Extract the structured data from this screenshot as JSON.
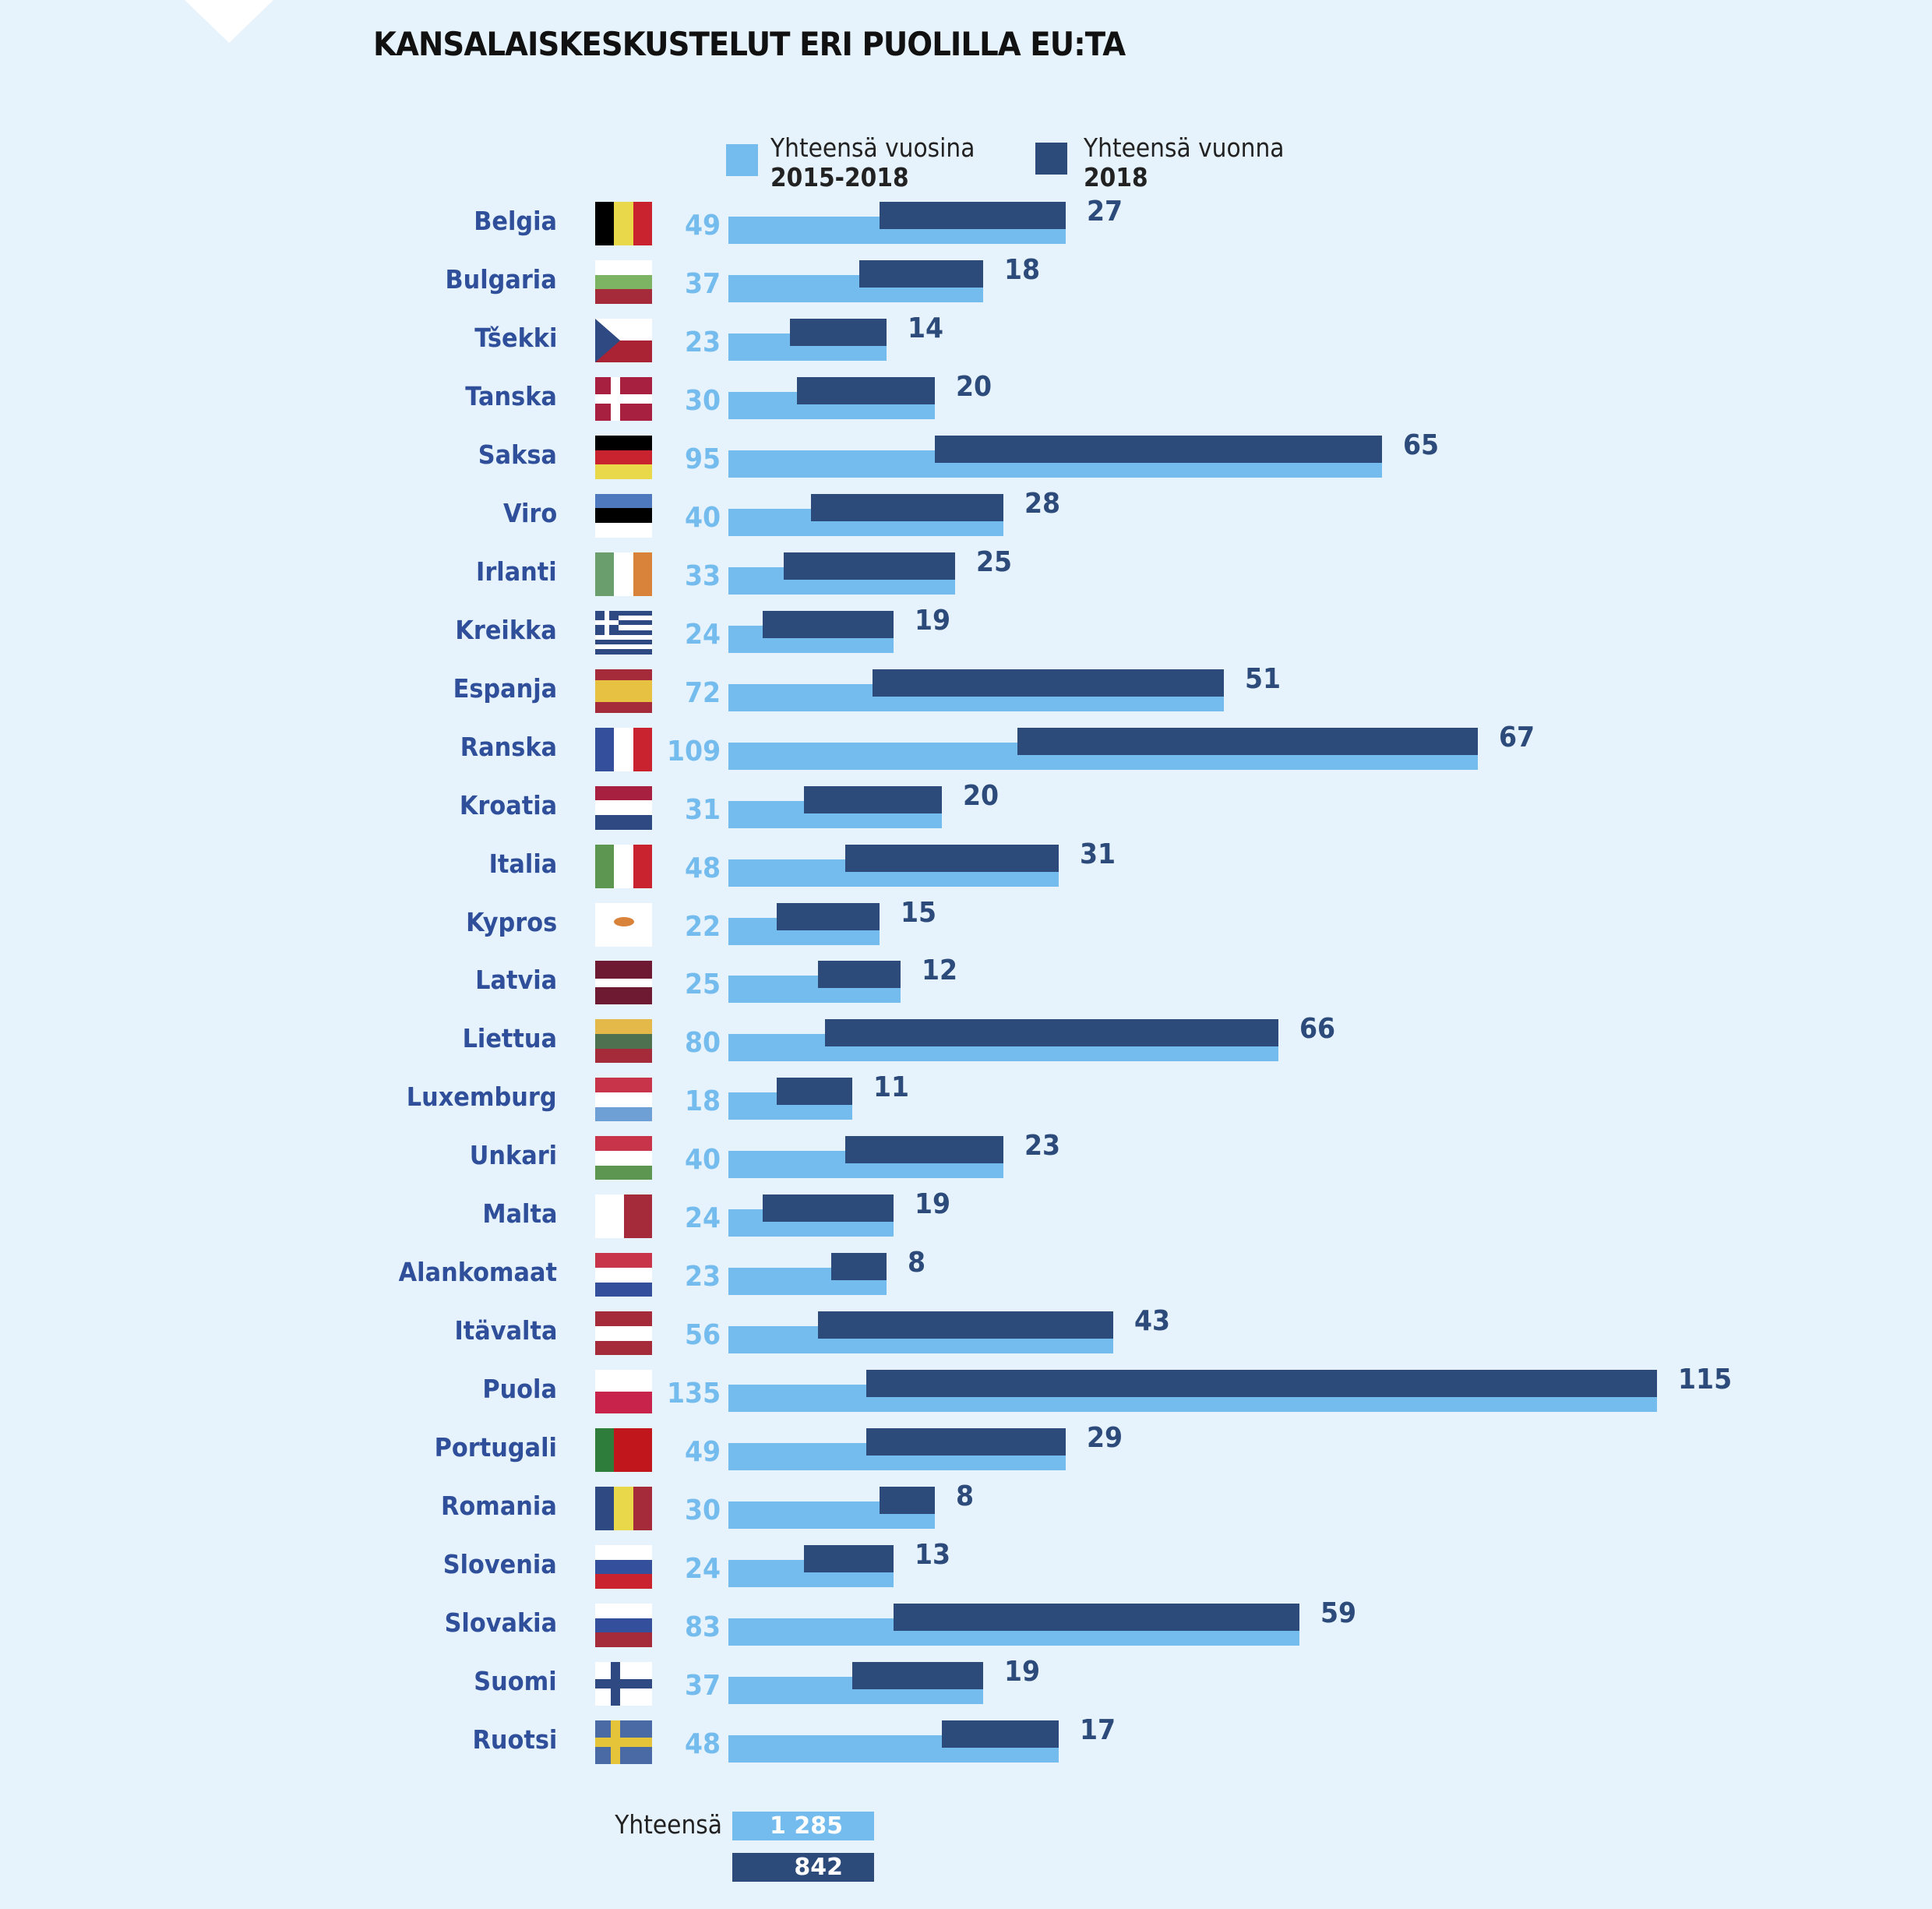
{
  "title": "KANSALAISKESKUSTELUT ERI PUOLILLA EU:TA",
  "colors": {
    "light": "#74bcee",
    "dark": "#2c4a7a",
    "label": "#2f4f9a",
    "background": "#e6f2fc"
  },
  "legend": [
    {
      "line1": "Yhteensä vuosina",
      "line2": "2015-2018",
      "color": "#74bcee"
    },
    {
      "line1": "Yhteensä vuonna",
      "line2": "2018",
      "color": "#2c4a7a"
    }
  ],
  "chart_data": {
    "type": "bar",
    "orientation": "horizontal",
    "categories": [
      "Belgia",
      "Bulgaria",
      "Tšekki",
      "Tanska",
      "Saksa",
      "Viro",
      "Irlanti",
      "Kreikka",
      "Espanja",
      "Ranska",
      "Kroatia",
      "Italia",
      "Kypros",
      "Latvia",
      "Liettua",
      "Luxemburg",
      "Unkari",
      "Malta",
      "Alankomaat",
      "Itävalta",
      "Puola",
      "Portugali",
      "Romania",
      "Slovenia",
      "Slovakia",
      "Suomi",
      "Ruotsi"
    ],
    "flags": [
      "flag-be",
      "flag-bg",
      "flag-cz",
      "flag-dk",
      "flag-de",
      "flag-ee",
      "flag-ie",
      "flag-gr",
      "flag-es",
      "flag-fr",
      "flag-hr",
      "flag-it",
      "flag-cy",
      "flag-lv",
      "flag-lt",
      "flag-lu",
      "flag-hu",
      "flag-mt",
      "flag-nl",
      "flag-at",
      "flag-pl",
      "flag-pt",
      "flag-ro",
      "flag-si",
      "flag-sk",
      "flag-fi",
      "flag-se"
    ],
    "series": [
      {
        "name": "Yhteensä vuosina 2015-2018",
        "values": [
          49,
          37,
          23,
          30,
          95,
          40,
          33,
          24,
          72,
          109,
          31,
          48,
          22,
          25,
          80,
          18,
          40,
          24,
          23,
          56,
          135,
          49,
          30,
          24,
          83,
          37,
          48
        ]
      },
      {
        "name": "Yhteensä vuonna 2018",
        "values": [
          27,
          18,
          14,
          20,
          65,
          28,
          25,
          19,
          51,
          67,
          20,
          31,
          15,
          12,
          66,
          11,
          23,
          19,
          8,
          43,
          115,
          29,
          8,
          13,
          59,
          19,
          17
        ]
      }
    ],
    "grid": false,
    "legend_position": "top"
  },
  "totals": {
    "label": "Yhteensä",
    "total_2015_2018": "1 285",
    "total_2018": "842"
  }
}
